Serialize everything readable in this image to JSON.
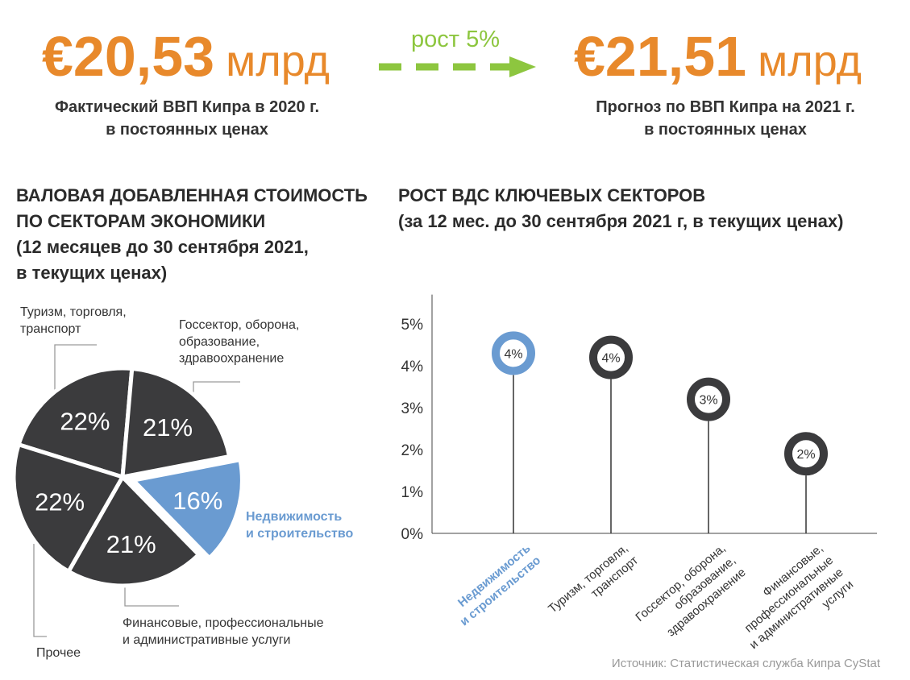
{
  "header": {
    "actual": {
      "amount": "€20,53",
      "unit": "млрд",
      "caption": [
        "Фактический ВВП Кипра в 2020 г.",
        "в постоянных ценах"
      ]
    },
    "growth": "рост 5%",
    "forecast": {
      "amount": "€21,51",
      "unit": "млрд",
      "caption": [
        "Прогноз по ВВП Кипра на 2021 г.",
        "в постоянных ценах"
      ]
    }
  },
  "chart_data": [
    {
      "type": "pie",
      "title": [
        "ВАЛОВАЯ ДОБАВЛЕННАЯ СТОИМОСТЬ",
        "ПО СЕКТОРАМ ЭКОНОМИКИ",
        "(12 месяцев до 30 сентября 2021,",
        "в текущих ценах)"
      ],
      "categories": [
        "Туризм, торговля,\nтранспорт",
        "Госсектор, оборона,\nобразование,\nздравоохранение",
        "Недвижимость\nи строительство",
        "Финансовые, профессиональные\nи административные услуги",
        "Прочее"
      ],
      "values": [
        22,
        21,
        16,
        21,
        22
      ],
      "value_labels": [
        "22%",
        "21%",
        "16%",
        "21%",
        "22%"
      ],
      "colors": [
        "#3b3b3d",
        "#3b3b3d",
        "#6a9bd1",
        "#3b3b3d",
        "#3b3b3d"
      ],
      "label_colors": [
        "#333333",
        "#333333",
        "#6a9bd1",
        "#333333",
        "#333333"
      ]
    },
    {
      "type": "lollipop",
      "title": [
        "РОСТ ВДС КЛЮЧЕВЫХ СЕКТОРОВ",
        "(за 12 мес. до 30 сентября 2021 г, в текущих ценах)"
      ],
      "categories": [
        "Недвижимость\nи строительство",
        "Туризм, торговля,\nтранспорт",
        "Госсектор, оборона,\nобразование,\nздравоохранение",
        "Финансовые,\nпрофессиональные\nи административные\nуслуги"
      ],
      "values": [
        4.3,
        4.2,
        3.2,
        1.9
      ],
      "value_labels": [
        "4%",
        "4%",
        "3%",
        "2%"
      ],
      "colors": [
        "#6a9bd1",
        "#3b3b3d",
        "#3b3b3d",
        "#3b3b3d"
      ],
      "label_colors": [
        "#6a9bd1",
        "#333333",
        "#333333",
        "#333333"
      ],
      "ylim": [
        0,
        5.7
      ],
      "yticks": [
        {
          "value": 0,
          "label": "0%"
        },
        {
          "value": 1,
          "label": "1%"
        },
        {
          "value": 2,
          "label": "2%"
        },
        {
          "value": 3,
          "label": "3%"
        },
        {
          "value": 4,
          "label": "4%"
        },
        {
          "value": 5,
          "label": "5%"
        }
      ]
    }
  ],
  "source": "Источник: Статистическая служба Кипра CyStat"
}
